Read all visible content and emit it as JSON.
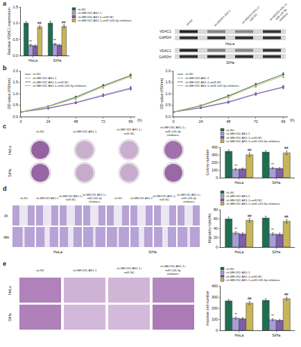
{
  "chart_data": [
    {
      "panel": "a",
      "type": "bar",
      "y_label": "Relative VDAC1 expression",
      "categories": [
        "HeLa",
        "SiHa"
      ],
      "ylim": [
        0,
        1.5
      ],
      "yticks": [
        {
          "value": 0,
          "label": "0.0"
        },
        {
          "value": 0.5,
          "label": "0.5"
        },
        {
          "value": 1,
          "label": "1.0"
        },
        {
          "value": 1.5,
          "label": "1.5"
        }
      ],
      "series": [
        {
          "name": "sh-NC",
          "color": "#1e6f50",
          "values": [
            1.0,
            1.0
          ],
          "errors": [
            0.05,
            0.06
          ]
        },
        {
          "name": "sh-MEOX2-AS1-1",
          "color": "#a89dd8",
          "values": [
            0.32,
            0.35
          ],
          "errors": [
            0.03,
            0.03
          ],
          "annotations": [
            "**",
            "**"
          ]
        },
        {
          "name": "sh-MEOX2-AS1-1+miR-NC",
          "color": "#7e5fa8",
          "values": [
            0.3,
            0.32
          ],
          "errors": [
            0.03,
            0.03
          ]
        },
        {
          "name": "sh-MEOX2-AS1-1+miR-143-3p inhibitors",
          "color": "#c8b45a",
          "values": [
            0.88,
            0.9
          ],
          "errors": [
            0.05,
            0.05
          ],
          "annotations": [
            "##",
            "##"
          ]
        }
      ]
    },
    {
      "panel": "b",
      "type": "line",
      "y_label": "OD value (450nm)",
      "x_label": "(h)",
      "x": [
        0,
        24,
        48,
        72,
        96
      ],
      "xlim": [
        0,
        100
      ],
      "xticks": [
        0,
        24,
        48,
        72,
        96
      ],
      "ylim": [
        0,
        2
      ],
      "yticks": [
        {
          "value": 0,
          "label": "0.0"
        },
        {
          "value": 0.5,
          "label": "0.5"
        },
        {
          "value": 1,
          "label": "1.0"
        },
        {
          "value": 1.5,
          "label": "1.5"
        },
        {
          "value": 2,
          "label": "2.0"
        }
      ],
      "series": [
        {
          "name": "sh-NC",
          "color": "#1e6f50",
          "values": [
            0.2,
            0.45,
            0.85,
            1.35,
            1.8
          ],
          "errors": [
            0.02,
            0.03,
            0.05,
            0.06,
            0.07
          ]
        },
        {
          "name": "sh-MEOX2-AS1-1",
          "color": "#a89dd8",
          "values": [
            0.2,
            0.38,
            0.62,
            0.95,
            1.25
          ],
          "errors": [
            0.02,
            0.03,
            0.04,
            0.05,
            0.06
          ]
        },
        {
          "name": "sh-MEOX2-AS1-1+miR-NC",
          "color": "#7e5fa8",
          "values": [
            0.2,
            0.36,
            0.6,
            0.92,
            1.22
          ],
          "errors": [
            0.02,
            0.03,
            0.04,
            0.05,
            0.06
          ]
        },
        {
          "name": "sh-MEOX2-AS1-1+miR-143-3p inhibitors",
          "color": "#c8b45a",
          "values": [
            0.2,
            0.44,
            0.8,
            1.3,
            1.75
          ],
          "errors": [
            0.02,
            0.03,
            0.05,
            0.06,
            0.07
          ]
        }
      ]
    },
    {
      "type": "line",
      "y_label": "OD value (450nm)",
      "x_label": "(h)",
      "x": [
        0,
        24,
        48,
        72,
        96
      ],
      "xlim": [
        0,
        100
      ],
      "xticks": [
        0,
        24,
        48,
        72,
        96
      ],
      "ylim": [
        0,
        2
      ],
      "yticks": [
        {
          "value": 0,
          "label": "0.0"
        },
        {
          "value": 0.5,
          "label": "0.5"
        },
        {
          "value": 1,
          "label": "1.0"
        },
        {
          "value": 1.5,
          "label": "1.5"
        },
        {
          "value": 2,
          "label": "2.0"
        }
      ],
      "series": [
        {
          "name": "sh-NC",
          "color": "#1e6f50",
          "values": [
            0.2,
            0.48,
            0.9,
            1.4,
            1.85
          ],
          "errors": [
            0.02,
            0.03,
            0.05,
            0.06,
            0.07
          ]
        },
        {
          "name": "sh-MEOX2-AS1-1",
          "color": "#a89dd8",
          "values": [
            0.2,
            0.4,
            0.65,
            1.0,
            1.3
          ],
          "errors": [
            0.02,
            0.03,
            0.04,
            0.05,
            0.06
          ]
        },
        {
          "name": "sh-MEOX2-AS1-1+miR-NC",
          "color": "#7e5fa8",
          "values": [
            0.2,
            0.38,
            0.62,
            0.98,
            1.28
          ],
          "errors": [
            0.02,
            0.03,
            0.04,
            0.05,
            0.06
          ]
        },
        {
          "name": "sh-MEOX2-AS1-1+miR-143-3p inhibitors",
          "color": "#c8b45a",
          "values": [
            0.2,
            0.46,
            0.86,
            1.35,
            1.78
          ],
          "errors": [
            0.02,
            0.03,
            0.05,
            0.06,
            0.07
          ]
        }
      ]
    },
    {
      "panel": "c",
      "type": "bar",
      "y_label": "Colony number",
      "categories": [
        "HeLa",
        "SiHa"
      ],
      "ylim": [
        0,
        400
      ],
      "yticks": [
        0,
        100,
        200,
        300,
        400
      ],
      "series": [
        {
          "name": "sh-NC",
          "color": "#1e6f50",
          "values": [
            345,
            335
          ],
          "errors": [
            20,
            20
          ]
        },
        {
          "name": "sh-MEOX2-AS1-1",
          "color": "#a89dd8",
          "values": [
            110,
            125
          ],
          "errors": [
            12,
            12
          ],
          "annotations": [
            "**",
            "**"
          ]
        },
        {
          "name": "sh-MEOX2-AS1-1+miR-NC",
          "color": "#7e5fa8",
          "values": [
            115,
            120
          ],
          "errors": [
            12,
            12
          ]
        },
        {
          "name": "sh-MEOX2-AS1-1+miR-143-3p inhibitors",
          "color": "#c8b45a",
          "values": [
            300,
            325
          ],
          "errors": [
            25,
            25
          ],
          "annotations": [
            "##",
            "##"
          ]
        }
      ]
    },
    {
      "panel": "d",
      "type": "bar",
      "y_label": "Migratory rate(%)",
      "categories": [
        "HeLa",
        "SiHa"
      ],
      "ylim": [
        0,
        80
      ],
      "yticks": [
        0,
        20,
        40,
        60,
        80
      ],
      "series": [
        {
          "name": "sh-NC",
          "color": "#1e6f50",
          "values": [
            60,
            62
          ],
          "errors": [
            4,
            4
          ]
        },
        {
          "name": "sh-MEOX2-AS1-1",
          "color": "#a89dd8",
          "values": [
            30,
            28
          ],
          "errors": [
            3,
            3
          ],
          "annotations": [
            "**",
            "**"
          ]
        },
        {
          "name": "sh-MEOX2-AS1-1+miR-NC",
          "color": "#7e5fa8",
          "values": [
            28,
            27
          ],
          "errors": [
            3,
            3
          ]
        },
        {
          "name": "sh-MEOX2-AS1-1+miR-143-3p inhibitors",
          "color": "#c8b45a",
          "values": [
            57,
            55
          ],
          "errors": [
            4,
            4
          ],
          "annotations": [
            "##",
            "##"
          ]
        }
      ]
    },
    {
      "panel": "e",
      "type": "bar",
      "y_label": "Invasive cell number",
      "categories": [
        "HeLa",
        "SiHa"
      ],
      "ylim": [
        0,
        400
      ],
      "yticks": [
        0,
        100,
        200,
        300,
        400
      ],
      "series": [
        {
          "name": "sh-NC",
          "color": "#1e6f50",
          "values": [
            265,
            270
          ],
          "errors": [
            15,
            15
          ]
        },
        {
          "name": "sh-MEOX2-AS1-1",
          "color": "#a89dd8",
          "values": [
            110,
            95
          ],
          "errors": [
            10,
            10
          ],
          "annotations": [
            "**",
            "**"
          ]
        },
        {
          "name": "sh-MEOX2-AS1-1+miR-NC",
          "color": "#7e5fa8",
          "values": [
            105,
            90
          ],
          "errors": [
            10,
            10
          ]
        },
        {
          "name": "sh-MEOX2-AS1-1+miR-143-3p inhibitors",
          "color": "#c8b45a",
          "values": [
            245,
            285
          ],
          "errors": [
            15,
            15
          ],
          "annotations": [
            "##",
            "##"
          ]
        }
      ]
    }
  ],
  "images": {
    "blot": {
      "columns": [
        "sh-NC",
        "sh-MEOX2-AS1-1",
        "sh-MEOX2-AS1-1+miR-NC",
        "sh-MEOX2-AS1-1+miR-143-3p inhibitors"
      ],
      "rows": [
        "VDAC1",
        "GAPDH"
      ],
      "cells": [
        "HeLa",
        "SiHa"
      ]
    },
    "colony": {
      "columns": [
        "sh-NC",
        "sh-MEOX2-AS1-1",
        "sh-MEOX2-AS1-1+miR-NC",
        "sh-MEOX2-AS1-1+miR-143-3p inhibitors"
      ],
      "rows": [
        "HeLa",
        "SiHa"
      ]
    },
    "wound": {
      "columns": [
        "sh-NC",
        "sh-MEOX2-AS1-1",
        "sh-MEOX2-AS1-1+miR-NC",
        "sh-MEOX2-AS1-1+miR-143-3p inhibitors"
      ],
      "rows": [
        "0h",
        "48h"
      ],
      "cells": [
        "HeLa",
        "SiHa"
      ]
    },
    "transwell": {
      "columns": [
        "sh-NC",
        "sh-MEOX2-AS1-1",
        "sh-MEOX2-AS1-1+miR-NC",
        "sh-MEOX2-AS1-1+miR-143-3p inhibitors"
      ],
      "rows": [
        "HeLa",
        "SiHa"
      ]
    }
  }
}
